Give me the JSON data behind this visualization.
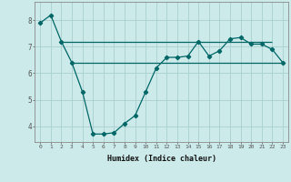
{
  "xlabel": "Humidex (Indice chaleur)",
  "x": [
    0,
    1,
    2,
    3,
    4,
    5,
    6,
    7,
    8,
    9,
    10,
    11,
    12,
    13,
    14,
    15,
    16,
    17,
    18,
    19,
    20,
    21,
    22,
    23
  ],
  "y": [
    7.9,
    8.2,
    7.2,
    6.4,
    5.3,
    3.7,
    3.7,
    3.75,
    4.1,
    4.4,
    5.3,
    6.2,
    6.6,
    6.6,
    6.65,
    7.2,
    6.65,
    6.85,
    7.3,
    7.35,
    7.1,
    7.1,
    6.9,
    6.4
  ],
  "hline1_y": 7.2,
  "hline2_y": 6.4,
  "hline1_x_start": 2,
  "hline1_x_end": 22,
  "hline2_x_start": 3,
  "hline2_x_end": 23,
  "line_color": "#006666",
  "bg_color": "#cceaea",
  "grid_color": "#aacfcf",
  "ylim": [
    3.4,
    8.7
  ],
  "yticks": [
    4,
    5,
    6,
    7,
    8
  ],
  "xticks": [
    0,
    1,
    2,
    3,
    4,
    5,
    6,
    7,
    8,
    9,
    10,
    11,
    12,
    13,
    14,
    15,
    16,
    17,
    18,
    19,
    20,
    21,
    22,
    23
  ]
}
